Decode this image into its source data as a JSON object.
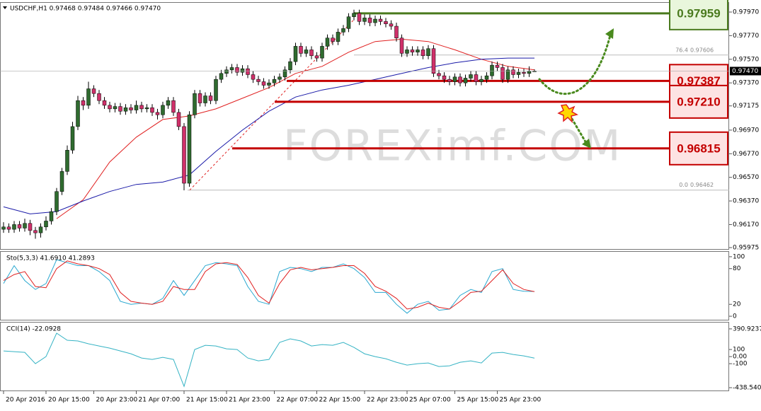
{
  "chart_data": [
    {
      "type": "candlestick",
      "title": "USDCHF,H1 0.97468 0.97484 0.97466 0.97470",
      "watermark": "FOREXimf.COM",
      "up_color": "#2f6b2f",
      "down_color": "#d0306a",
      "xlim": [
        -0.667,
        136.667
      ],
      "xticks": [
        {
          "value": 0,
          "label": "20 Apr 2016"
        },
        {
          "value": 8,
          "label": "20 Apr 15:00"
        },
        {
          "value": 17,
          "label": "20 Apr 23:00"
        },
        {
          "value": 25,
          "label": "21 Apr 07:00"
        },
        {
          "value": 34,
          "label": "21 Apr 15:00"
        },
        {
          "value": 42,
          "label": "21 Apr 23:00"
        },
        {
          "value": 51,
          "label": "22 Apr 07:00"
        },
        {
          "value": 59,
          "label": "22 Apr 15:00"
        },
        {
          "value": 68,
          "label": "22 Apr 23:00"
        },
        {
          "value": 76,
          "label": "25 Apr 07:00"
        },
        {
          "value": 85,
          "label": "25 Apr 15:00"
        },
        {
          "value": 93,
          "label": "25 Apr 23:00"
        }
      ],
      "ylim": [
        0.95963,
        0.98048
      ],
      "yticks": [
        {
          "value": 0.9797,
          "label": "0.97970"
        },
        {
          "value": 0.9777,
          "label": "0.97770"
        },
        {
          "value": 0.9757,
          "label": "0.97570"
        },
        {
          "value": 0.9737,
          "label": "0.97370"
        },
        0.97175,
        {
          "value": 0.9697,
          "label": "0.96970"
        },
        {
          "value": 0.9677,
          "label": "0.96770"
        },
        {
          "value": 0.9657,
          "label": "0.96570"
        },
        {
          "value": 0.9637,
          "label": "0.96370"
        },
        {
          "value": 0.9617,
          "label": "0.96170"
        },
        0.95975
      ],
      "current_price": {
        "value": 0.9747,
        "label": "0.97470"
      },
      "levels": [
        {
          "value": 0.97959,
          "color": "#4a7a1e",
          "box": "#e9f6dc"
        },
        {
          "value": 0.97387,
          "color": "#c40000",
          "box": "#fde3e3"
        },
        {
          "value": 0.9721,
          "label": "0.97210",
          "color": "#c40000",
          "box": "#fde3e3"
        },
        {
          "value": 0.96815,
          "color": "#c40000",
          "box": "#fde3e3"
        }
      ],
      "fib_levels": [
        {
          "level": "76.4",
          "value": 0.97606
        },
        {
          "level": "0.0",
          "value": 0.96462
        }
      ],
      "candles": [
        [
          0.9613,
          0.9619,
          0.961,
          0.9615
        ],
        [
          0.9615,
          0.9618,
          0.961,
          0.9613
        ],
        [
          0.9613,
          0.962,
          0.961,
          0.9617
        ],
        [
          0.9617,
          0.962,
          0.9611,
          0.9614
        ],
        [
          0.9614,
          0.9622,
          0.9611,
          0.9618
        ],
        [
          0.9618,
          0.9621,
          0.9608,
          0.9612
        ],
        [
          0.9612,
          0.9615,
          0.9605,
          0.961
        ],
        [
          0.961,
          0.9618,
          0.9606,
          0.9615
        ],
        [
          0.9615,
          0.9624,
          0.9612,
          0.962
        ],
        [
          0.962,
          0.9631,
          0.9617,
          0.9628
        ],
        [
          0.9628,
          0.9648,
          0.9625,
          0.9645
        ],
        [
          0.9645,
          0.9665,
          0.9642,
          0.9662
        ],
        [
          0.9662,
          0.9684,
          0.9659,
          0.968
        ],
        [
          0.968,
          0.9704,
          0.9677,
          0.97
        ],
        [
          0.97,
          0.9726,
          0.9697,
          0.9722
        ],
        [
          0.9722,
          0.9725,
          0.9714,
          0.9718
        ],
        [
          0.9718,
          0.9738,
          0.9715,
          0.9732
        ],
        [
          0.9732,
          0.9735,
          0.9725,
          0.9728
        ],
        [
          0.9728,
          0.9731,
          0.9719,
          0.9722
        ],
        [
          0.9722,
          0.9725,
          0.9715,
          0.9718
        ],
        [
          0.9718,
          0.9721,
          0.9712,
          0.9715
        ],
        [
          0.9715,
          0.972,
          0.9712,
          0.9717
        ],
        [
          0.9717,
          0.972,
          0.971,
          0.9713
        ],
        [
          0.9713,
          0.9719,
          0.971,
          0.9716
        ],
        [
          0.9716,
          0.9719,
          0.9711,
          0.9714
        ],
        [
          0.9714,
          0.9722,
          0.9711,
          0.9718
        ],
        [
          0.9718,
          0.9721,
          0.9712,
          0.9715
        ],
        [
          0.9715,
          0.9719,
          0.9712,
          0.9716
        ],
        [
          0.9716,
          0.9719,
          0.9709,
          0.9712
        ],
        [
          0.9712,
          0.9715,
          0.9706,
          0.971
        ],
        [
          0.971,
          0.9721,
          0.9707,
          0.9718
        ],
        [
          0.9718,
          0.9725,
          0.9715,
          0.9722
        ],
        [
          0.9722,
          0.9725,
          0.9709,
          0.9712
        ],
        [
          0.9712,
          0.9715,
          0.9697,
          0.97
        ],
        [
          0.97,
          0.9703,
          0.9646,
          0.9652
        ],
        [
          0.9652,
          0.9713,
          0.9649,
          0.971
        ],
        [
          0.971,
          0.9731,
          0.9707,
          0.9728
        ],
        [
          0.9728,
          0.9731,
          0.9717,
          0.972
        ],
        [
          0.972,
          0.9729,
          0.9717,
          0.9726
        ],
        [
          0.9726,
          0.9729,
          0.9719,
          0.9722
        ],
        [
          0.9722,
          0.9743,
          0.9719,
          0.974
        ],
        [
          0.974,
          0.9748,
          0.9737,
          0.9745
        ],
        [
          0.9745,
          0.9751,
          0.9742,
          0.9748
        ],
        [
          0.9748,
          0.9753,
          0.9745,
          0.975
        ],
        [
          0.975,
          0.9753,
          0.9743,
          0.9746
        ],
        [
          0.9746,
          0.9752,
          0.9743,
          0.9749
        ],
        [
          0.9749,
          0.9752,
          0.9741,
          0.9744
        ],
        [
          0.9744,
          0.9747,
          0.9737,
          0.974
        ],
        [
          0.974,
          0.9743,
          0.9735,
          0.9738
        ],
        [
          0.9738,
          0.9741,
          0.9732,
          0.9735
        ],
        [
          0.9735,
          0.974,
          0.9732,
          0.9737
        ],
        [
          0.9737,
          0.9743,
          0.9734,
          0.974
        ],
        [
          0.974,
          0.9745,
          0.9737,
          0.9742
        ],
        [
          0.9742,
          0.9751,
          0.9739,
          0.9748
        ],
        [
          0.9748,
          0.9758,
          0.9745,
          0.9755
        ],
        [
          0.9755,
          0.9771,
          0.9752,
          0.9768
        ],
        [
          0.9768,
          0.9771,
          0.9759,
          0.9762
        ],
        [
          0.9762,
          0.9768,
          0.9759,
          0.9765
        ],
        [
          0.9765,
          0.9768,
          0.9757,
          0.976
        ],
        [
          0.976,
          0.9763,
          0.9755,
          0.9758
        ],
        [
          0.9758,
          0.9771,
          0.9755,
          0.9768
        ],
        [
          0.9768,
          0.9778,
          0.9765,
          0.9775
        ],
        [
          0.9775,
          0.9778,
          0.9769,
          0.9772
        ],
        [
          0.9772,
          0.9783,
          0.9769,
          0.978
        ],
        [
          0.978,
          0.9786,
          0.9777,
          0.9783
        ],
        [
          0.9783,
          0.9796,
          0.978,
          0.9793
        ],
        [
          0.9793,
          0.9799,
          0.979,
          0.9796
        ],
        [
          0.9796,
          0.9799,
          0.9786,
          0.9789
        ],
        [
          0.9789,
          0.9795,
          0.9786,
          0.9792
        ],
        [
          0.9792,
          0.9795,
          0.9785,
          0.9788
        ],
        [
          0.9788,
          0.9794,
          0.9785,
          0.9791
        ],
        [
          0.9791,
          0.9794,
          0.9786,
          0.9789
        ],
        [
          0.9789,
          0.9792,
          0.9784,
          0.9787
        ],
        [
          0.9787,
          0.979,
          0.9782,
          0.9785
        ],
        [
          0.9785,
          0.9788,
          0.9772,
          0.9775
        ],
        [
          0.9775,
          0.9778,
          0.9759,
          0.9762
        ],
        [
          0.9762,
          0.9768,
          0.9759,
          0.9765
        ],
        [
          0.9765,
          0.9768,
          0.976,
          0.9763
        ],
        [
          0.9763,
          0.9768,
          0.976,
          0.9765
        ],
        [
          0.9765,
          0.9768,
          0.9757,
          0.976
        ],
        [
          0.976,
          0.9769,
          0.9757,
          0.9766
        ],
        [
          0.9766,
          0.9769,
          0.9742,
          0.9745
        ],
        [
          0.9745,
          0.9748,
          0.974,
          0.9743
        ],
        [
          0.9743,
          0.9746,
          0.9737,
          0.974
        ],
        [
          0.974,
          0.9743,
          0.9735,
          0.9738
        ],
        [
          0.9738,
          0.9745,
          0.9735,
          0.9742
        ],
        [
          0.9742,
          0.9745,
          0.9734,
          0.9737
        ],
        [
          0.9737,
          0.9744,
          0.9734,
          0.9741
        ],
        [
          0.9741,
          0.9747,
          0.9738,
          0.9744
        ],
        [
          0.9744,
          0.9747,
          0.9735,
          0.9738
        ],
        [
          0.9738,
          0.9743,
          0.9735,
          0.974
        ],
        [
          0.974,
          0.9746,
          0.9737,
          0.9743
        ],
        [
          0.9743,
          0.9755,
          0.974,
          0.9752
        ],
        [
          0.9752,
          0.9755,
          0.9747,
          0.975
        ],
        [
          0.975,
          0.9753,
          0.9737,
          0.974
        ],
        [
          0.974,
          0.9751,
          0.9737,
          0.9748
        ],
        [
          0.9748,
          0.9751,
          0.9741,
          0.9744
        ],
        [
          0.9744,
          0.9749,
          0.9741,
          0.9746
        ],
        [
          0.9746,
          0.9749,
          0.9742,
          0.9745
        ],
        [
          0.9745,
          0.9751,
          0.9742,
          0.97468
        ],
        [
          0.97468,
          0.97484,
          0.97466,
          0.9747
        ]
      ],
      "overlays": [
        {
          "color": "#e02020",
          "x": [
            0,
            5,
            10,
            15,
            20,
            25,
            30,
            35,
            40,
            45,
            50,
            55,
            60,
            65,
            70,
            75,
            80,
            85,
            90,
            95,
            100
          ],
          "values": [
            null,
            null,
            0.9622,
            0.9638,
            0.967,
            0.9691,
            0.9706,
            0.9709,
            0.9715,
            0.9724,
            0.9733,
            0.9745,
            0.9751,
            0.9763,
            0.9772,
            0.9774,
            0.9772,
            0.9765,
            0.9757,
            0.9751,
            0.9748
          ]
        },
        {
          "color": "#1a1aa8",
          "x": [
            0,
            5,
            10,
            15,
            20,
            25,
            30,
            35,
            40,
            45,
            50,
            55,
            60,
            65,
            70,
            75,
            80,
            85,
            90,
            95,
            100
          ],
          "values": [
            0.9632,
            0.9626,
            0.9628,
            0.9637,
            0.9645,
            0.9651,
            0.9653,
            0.9659,
            0.9679,
            0.9697,
            0.9713,
            0.9725,
            0.9731,
            0.9735,
            0.974,
            0.9745,
            0.975,
            0.9754,
            0.9757,
            0.9758,
            0.9758
          ]
        }
      ]
    },
    {
      "type": "line",
      "title": "Sto(5,3,3) 41.6910 41.2893",
      "xlim": [
        -0.667,
        136.667
      ],
      "ylim": [
        -5.9,
        108.2
      ],
      "yticks": [
        0,
        20,
        80,
        100
      ],
      "x": [
        0,
        2,
        4,
        6,
        8,
        10,
        12,
        14,
        16,
        18,
        20,
        22,
        24,
        26,
        28,
        30,
        32,
        34,
        36,
        38,
        40,
        42,
        44,
        46,
        48,
        50,
        52,
        54,
        56,
        58,
        60,
        62,
        64,
        66,
        68,
        70,
        72,
        74,
        76,
        78,
        80,
        82,
        84,
        86,
        88,
        90,
        92,
        94,
        96,
        98,
        100
      ],
      "series": [
        {
          "color": "#2aa8d0",
          "values": [
            55,
            85,
            60,
            45,
            55,
            95,
            90,
            85,
            85,
            75,
            60,
            25,
            20,
            22,
            20,
            30,
            60,
            35,
            60,
            85,
            90,
            88,
            85,
            50,
            25,
            20,
            75,
            82,
            80,
            75,
            82,
            82,
            88,
            80,
            65,
            40,
            40,
            20,
            5,
            20,
            25,
            10,
            12,
            35,
            45,
            40,
            75,
            80,
            45,
            42,
            41.691
          ]
        },
        {
          "color": "#e02020",
          "values": [
            60,
            70,
            75,
            50,
            48,
            80,
            93,
            88,
            85,
            80,
            70,
            40,
            25,
            22,
            20,
            25,
            50,
            45,
            45,
            75,
            88,
            90,
            87,
            65,
            35,
            22,
            55,
            78,
            82,
            78,
            80,
            82,
            85,
            85,
            72,
            50,
            42,
            30,
            12,
            15,
            22,
            15,
            12,
            25,
            40,
            42,
            60,
            78,
            55,
            45,
            41.2893
          ]
        }
      ]
    },
    {
      "type": "line",
      "title": "CCI(14) -22.0928",
      "xlim": [
        -0.667,
        136.667
      ],
      "ylim": [
        -478.0,
        479.8
      ],
      "yticks": [
        390.9237,
        100,
        {
          "value": 0,
          "label": "0.00"
        },
        -100,
        -438.5405
      ],
      "x": [
        0,
        2,
        4,
        6,
        8,
        10,
        12,
        14,
        16,
        18,
        20,
        22,
        24,
        26,
        28,
        30,
        32,
        34,
        36,
        38,
        40,
        42,
        44,
        46,
        48,
        50,
        52,
        54,
        56,
        58,
        60,
        62,
        64,
        66,
        68,
        70,
        72,
        74,
        76,
        78,
        80,
        82,
        84,
        86,
        88,
        90,
        92,
        94,
        96,
        98,
        100
      ],
      "series": [
        {
          "color": "#35b3c4",
          "values": [
            80,
            70,
            60,
            -100,
            0,
            330,
            230,
            220,
            180,
            150,
            120,
            80,
            40,
            -20,
            -40,
            -10,
            -40,
            -420,
            100,
            160,
            150,
            110,
            100,
            -20,
            -60,
            -40,
            200,
            250,
            220,
            150,
            170,
            160,
            200,
            130,
            40,
            0,
            -30,
            -80,
            -120,
            -100,
            -90,
            -140,
            -130,
            -80,
            -60,
            -90,
            50,
            60,
            30,
            10,
            -22.0928
          ]
        }
      ]
    }
  ]
}
